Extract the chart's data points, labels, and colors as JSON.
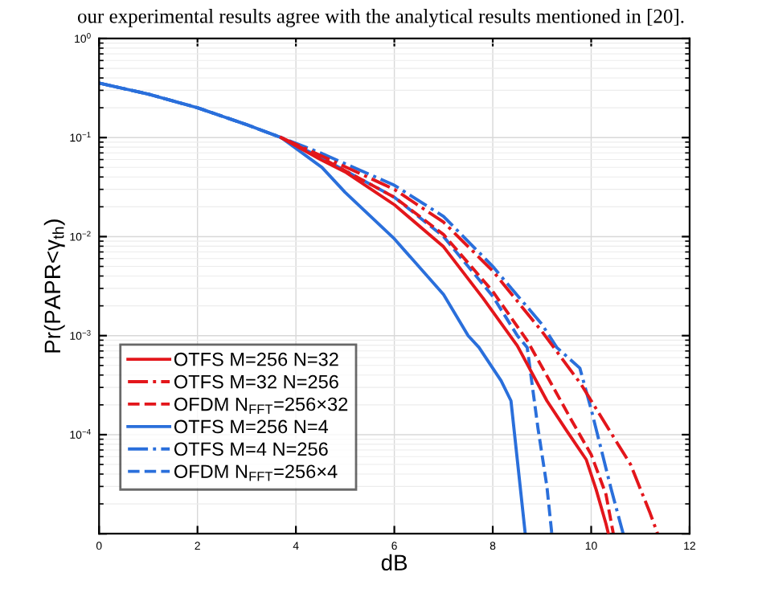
{
  "chart_data": {
    "type": "line",
    "xlabel": "dB",
    "ylabel": "Pr(PAPR<γ$_{th}$)",
    "annotations": [
      "our experimental results agree with the analytical results mentioned in [20]."
    ],
    "log": "y",
    "xlim": [
      0,
      12
    ],
    "ylim": [
      1e-05,
      1
    ],
    "xticks": [
      0,
      2,
      4,
      6,
      8,
      10,
      12
    ],
    "yticks": [
      {
        "value": 1e-05,
        "label": null
      },
      {
        "value": 0.0001,
        "label": "10$^{−4}$"
      },
      {
        "value": 0.001,
        "label": "10$^{−3}$"
      },
      {
        "value": 0.01,
        "label": "10$^{−2}$"
      },
      {
        "value": 0.1,
        "label": "10$^{−1}$"
      },
      {
        "value": 1,
        "label": "10$^{0}$"
      }
    ],
    "grid": true,
    "legend": "bottom left",
    "series": [
      {
        "name": "OTFS M=256 N=32",
        "color": "#e3161b",
        "line_style": "solid",
        "x": [
          3.7,
          4.5,
          5,
          6,
          7,
          7.8,
          8.5,
          9.1,
          9.5,
          9.9,
          10.1,
          10.3,
          10.35
        ],
        "values": [
          0.1,
          0.06,
          0.045,
          0.021,
          0.0079,
          0.0024,
          0.00079,
          0.00022,
          0.00011,
          5.6e-05,
          2.8e-05,
          1.26e-05,
          1e-05
        ]
      },
      {
        "name": "OTFS M=32 N=256",
        "color": "#e3161b",
        "line_style": "dashdot",
        "x": [
          3.7,
          4.5,
          6,
          7,
          8,
          9,
          9.8,
          10.3,
          10.8,
          11.2,
          11.35
        ],
        "values": [
          0.1,
          0.066,
          0.03,
          0.014,
          0.0045,
          0.0011,
          0.00032,
          0.000126,
          5e-05,
          1.6e-05,
          1e-05
        ]
      },
      {
        "name": "OFDM N$_{FFT}$=256×32",
        "color": "#e3161b",
        "line_style": "dashed",
        "x": [
          3.7,
          4.5,
          6,
          7,
          8,
          8.7,
          9.2,
          9.6,
          10,
          10.3,
          10.45
        ],
        "values": [
          0.1,
          0.063,
          0.025,
          0.0105,
          0.0028,
          0.00089,
          0.00032,
          0.00014,
          6.3e-05,
          2.5e-05,
          1e-05
        ]
      },
      {
        "name": "OTFS M=256 N=4",
        "color": "#2a6fdb",
        "line_style": "solid",
        "x": [
          0,
          1,
          2,
          3,
          3.7,
          4.53,
          5,
          6,
          7,
          7.5,
          7.72,
          8.17,
          8.37,
          8.66
        ],
        "values": [
          0.355,
          0.275,
          0.2,
          0.135,
          0.1,
          0.05,
          0.028,
          0.0095,
          0.0026,
          0.001,
          0.00076,
          0.00035,
          0.00022,
          1e-05
        ]
      },
      {
        "name": "OTFS M=4 N=256",
        "color": "#2a6fdb",
        "line_style": "dashdot",
        "x": [
          0,
          1,
          2,
          3,
          3.7,
          4.5,
          6,
          7,
          8,
          9,
          9.3,
          9.77,
          10,
          10.4,
          10.65
        ],
        "values": [
          0.355,
          0.275,
          0.2,
          0.135,
          0.1,
          0.07,
          0.033,
          0.016,
          0.005,
          0.0013,
          0.00076,
          0.00047,
          0.00018,
          2.9e-05,
          1e-05
        ]
      },
      {
        "name": "OFDM N$_{FFT}$=256×4",
        "color": "#2a6fdb",
        "line_style": "dashed",
        "x": [
          0,
          1,
          2,
          3,
          3.7,
          4.5,
          6,
          7,
          8,
          8.5,
          8.7,
          8.92,
          9.1,
          9.2
        ],
        "values": [
          0.355,
          0.275,
          0.2,
          0.135,
          0.1,
          0.063,
          0.025,
          0.01,
          0.0025,
          0.001,
          0.00076,
          0.000115,
          3e-05,
          1e-05
        ]
      }
    ]
  }
}
